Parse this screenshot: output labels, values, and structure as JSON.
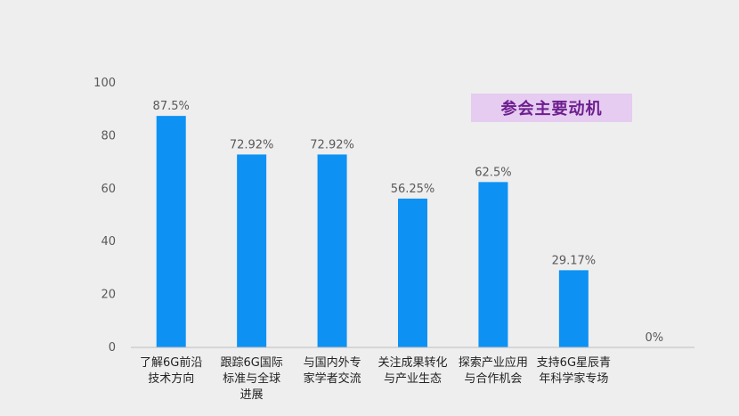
{
  "chart_data": {
    "type": "bar",
    "title": "参会主要动机",
    "categories": [
      [
        "了解6G前沿",
        "技术方向"
      ],
      [
        "跟踪6G国际",
        "标准与全球",
        "进展"
      ],
      [
        "与国内外专",
        "家学者交流"
      ],
      [
        "关注成果转化",
        "与产业生态"
      ],
      [
        "探索产业应用",
        "与合作机会"
      ],
      [
        "支持6G星辰青",
        "年科学家专场"
      ],
      []
    ],
    "values": [
      87.5,
      72.92,
      72.92,
      56.25,
      62.5,
      29.17,
      0
    ],
    "data_labels": [
      "87.5%",
      "72.92%",
      "72.92%",
      "56.25%",
      "62.5%",
      "29.17%",
      "0%"
    ],
    "ylim": [
      0,
      100
    ],
    "yticks": [
      0,
      20,
      40,
      60,
      80,
      100
    ],
    "bar_color": "#0d92f4",
    "title_bg_color": "#e5ccf0",
    "title_color": "#6e1f8f",
    "axis_color": "#bfbfbf"
  }
}
